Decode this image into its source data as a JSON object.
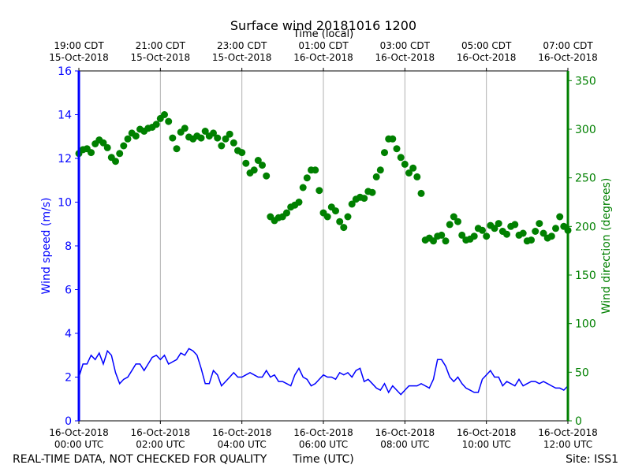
{
  "chart_data": {
    "type": "scatter",
    "title": "Surface wind 20181016 1200",
    "x_top_label": "Time (local)",
    "x_bottom_label": "Time (UTC)",
    "y_left_label": "Wind speed (m/s)",
    "y_right_label": "Wind direction (degrees)",
    "xlim_hours_utc": [
      0,
      12
    ],
    "y_left_lim": [
      0,
      16
    ],
    "y_right_lim": [
      0,
      360
    ],
    "grid": "vertical",
    "bottom_ticks": [
      {
        "hour": 0,
        "label1": "16-Oct-2018",
        "label2": "00:00 UTC"
      },
      {
        "hour": 2,
        "label1": "16-Oct-2018",
        "label2": "02:00 UTC"
      },
      {
        "hour": 4,
        "label1": "16-Oct-2018",
        "label2": "04:00 UTC"
      },
      {
        "hour": 6,
        "label1": "16-Oct-2018",
        "label2": "06:00 UTC"
      },
      {
        "hour": 8,
        "label1": "16-Oct-2018",
        "label2": "08:00 UTC"
      },
      {
        "hour": 10,
        "label1": "16-Oct-2018",
        "label2": "10:00 UTC"
      },
      {
        "hour": 12,
        "label1": "16-Oct-2018",
        "label2": "12:00 UTC"
      }
    ],
    "top_ticks": [
      {
        "hour": 0,
        "label1": "19:00 CDT",
        "label2": "15-Oct-2018"
      },
      {
        "hour": 2,
        "label1": "21:00 CDT",
        "label2": "15-Oct-2018"
      },
      {
        "hour": 4,
        "label1": "23:00 CDT",
        "label2": "15-Oct-2018"
      },
      {
        "hour": 6,
        "label1": "01:00 CDT",
        "label2": "16-Oct-2018"
      },
      {
        "hour": 8,
        "label1": "03:00 CDT",
        "label2": "16-Oct-2018"
      },
      {
        "hour": 10,
        "label1": "05:00 CDT",
        "label2": "16-Oct-2018"
      },
      {
        "hour": 12,
        "label1": "07:00 CDT",
        "label2": "16-Oct-2018"
      }
    ],
    "y_left_ticks": [
      0,
      2,
      4,
      6,
      8,
      10,
      12,
      14,
      16
    ],
    "y_right_ticks": [
      0,
      50,
      100,
      150,
      200,
      250,
      300,
      350
    ],
    "series": [
      {
        "axis": "left",
        "color": "#0000ff",
        "style": "line",
        "x": [
          0,
          0.1,
          0.2,
          0.3,
          0.4,
          0.5,
          0.6,
          0.7,
          0.8,
          0.9,
          1.0,
          1.1,
          1.2,
          1.3,
          1.4,
          1.5,
          1.6,
          1.7,
          1.8,
          1.9,
          2.0,
          2.1,
          2.2,
          2.3,
          2.4,
          2.5,
          2.6,
          2.7,
          2.8,
          2.9,
          3.0,
          3.1,
          3.2,
          3.3,
          3.4,
          3.5,
          3.6,
          3.7,
          3.8,
          3.9,
          4.0,
          4.1,
          4.2,
          4.3,
          4.4,
          4.5,
          4.6,
          4.7,
          4.8,
          4.9,
          5.0,
          5.1,
          5.2,
          5.3,
          5.4,
          5.5,
          5.6,
          5.7,
          5.8,
          5.9,
          6.0,
          6.1,
          6.2,
          6.3,
          6.4,
          6.5,
          6.6,
          6.7,
          6.8,
          6.9,
          7.0,
          7.1,
          7.2,
          7.3,
          7.4,
          7.5,
          7.6,
          7.7,
          7.8,
          7.9,
          8.0,
          8.1,
          8.2,
          8.3,
          8.4,
          8.5,
          8.6,
          8.7,
          8.8,
          8.9,
          9.0,
          9.1,
          9.2,
          9.3,
          9.4,
          9.5,
          9.6,
          9.7,
          9.8,
          9.9,
          10.0,
          10.1,
          10.2,
          10.3,
          10.4,
          10.5,
          10.6,
          10.7,
          10.8,
          10.9,
          11.0,
          11.1,
          11.2,
          11.3,
          11.4,
          11.5,
          11.6,
          11.7,
          11.8,
          11.9,
          12.0
        ],
        "values": [
          2.0,
          2.6,
          2.6,
          3.0,
          2.8,
          3.1,
          2.6,
          3.2,
          3.0,
          2.2,
          1.7,
          1.9,
          2.0,
          2.3,
          2.6,
          2.6,
          2.3,
          2.6,
          2.9,
          3.0,
          2.8,
          3.0,
          2.6,
          2.7,
          2.8,
          3.1,
          3.0,
          3.3,
          3.2,
          3.0,
          2.4,
          1.7,
          1.7,
          2.3,
          2.1,
          1.6,
          1.8,
          2.0,
          2.2,
          2.0,
          2.0,
          2.1,
          2.2,
          2.1,
          2.0,
          2.0,
          2.3,
          2.0,
          2.1,
          1.8,
          1.8,
          1.7,
          1.6,
          2.1,
          2.4,
          2.0,
          1.9,
          1.6,
          1.7,
          1.9,
          2.1,
          2.0,
          2.0,
          1.9,
          2.2,
          2.1,
          2.2,
          2.0,
          2.3,
          2.4,
          1.8,
          1.9,
          1.7,
          1.5,
          1.4,
          1.7,
          1.3,
          1.6,
          1.4,
          1.2,
          1.4,
          1.6,
          1.6,
          1.6,
          1.7,
          1.6,
          1.5,
          1.9,
          2.8,
          2.8,
          2.5,
          2.0,
          1.8,
          2.0,
          1.7,
          1.5,
          1.4,
          1.3,
          1.3,
          1.9,
          2.1,
          2.3,
          2.0,
          2.0,
          1.6,
          1.8,
          1.7,
          1.6,
          1.9,
          1.6,
          1.7,
          1.8,
          1.8,
          1.7,
          1.8,
          1.7,
          1.6,
          1.5,
          1.5,
          1.4,
          1.6
        ]
      },
      {
        "axis": "right",
        "color": "#008000",
        "style": "markers",
        "x": [
          0,
          0.1,
          0.2,
          0.3,
          0.4,
          0.5,
          0.6,
          0.7,
          0.8,
          0.9,
          1.0,
          1.1,
          1.2,
          1.3,
          1.4,
          1.5,
          1.6,
          1.7,
          1.8,
          1.9,
          2.0,
          2.1,
          2.2,
          2.3,
          2.4,
          2.5,
          2.6,
          2.7,
          2.8,
          2.9,
          3.0,
          3.1,
          3.2,
          3.3,
          3.4,
          3.5,
          3.6,
          3.7,
          3.8,
          3.9,
          4.0,
          4.1,
          4.2,
          4.3,
          4.4,
          4.5,
          4.6,
          4.7,
          4.8,
          4.9,
          5.0,
          5.1,
          5.2,
          5.3,
          5.4,
          5.5,
          5.6,
          5.7,
          5.8,
          5.9,
          6.0,
          6.1,
          6.2,
          6.3,
          6.4,
          6.5,
          6.6,
          6.7,
          6.8,
          6.9,
          7.0,
          7.1,
          7.2,
          7.3,
          7.4,
          7.5,
          7.6,
          7.7,
          7.8,
          7.9,
          8.0,
          8.1,
          8.2,
          8.3,
          8.4,
          8.5,
          8.6,
          8.7,
          8.8,
          8.9,
          9.0,
          9.1,
          9.2,
          9.3,
          9.4,
          9.5,
          9.6,
          9.7,
          9.8,
          9.9,
          10.0,
          10.1,
          10.2,
          10.3,
          10.4,
          10.5,
          10.6,
          10.7,
          10.8,
          10.9,
          11.0,
          11.1,
          11.2,
          11.3,
          11.4,
          11.5,
          11.6,
          11.7,
          11.8,
          11.9,
          12.0
        ],
        "values": [
          275,
          279,
          280,
          276,
          285,
          289,
          286,
          281,
          271,
          267,
          275,
          283,
          290,
          296,
          293,
          300,
          298,
          301,
          302,
          305,
          311,
          315,
          308,
          291,
          280,
          297,
          301,
          292,
          290,
          293,
          291,
          298,
          293,
          296,
          291,
          283,
          290,
          295,
          286,
          278,
          276,
          265,
          255,
          258,
          268,
          263,
          252,
          210,
          206,
          209,
          210,
          214,
          220,
          222,
          225,
          240,
          250,
          258,
          258,
          237,
          214,
          210,
          220,
          216,
          205,
          199,
          210,
          223,
          228,
          230,
          229,
          236,
          235,
          251,
          258,
          276,
          290,
          290,
          280,
          271,
          264,
          255,
          260,
          251,
          234,
          186,
          188,
          185,
          190,
          191,
          185,
          202,
          210,
          205,
          191,
          186,
          187,
          190,
          198,
          196,
          190,
          201,
          198,
          203,
          195,
          192,
          200,
          202,
          191,
          193,
          185,
          186,
          195,
          203,
          193,
          188,
          190,
          198,
          210,
          200,
          196
        ]
      }
    ]
  },
  "footer": {
    "left": "REAL-TIME DATA, NOT CHECKED FOR QUALITY",
    "center": "Time (UTC)",
    "right": "Site: ISS1"
  },
  "colors": {
    "speed": "#0000ff",
    "direction": "#008000",
    "grid": "#b0b0b0"
  }
}
